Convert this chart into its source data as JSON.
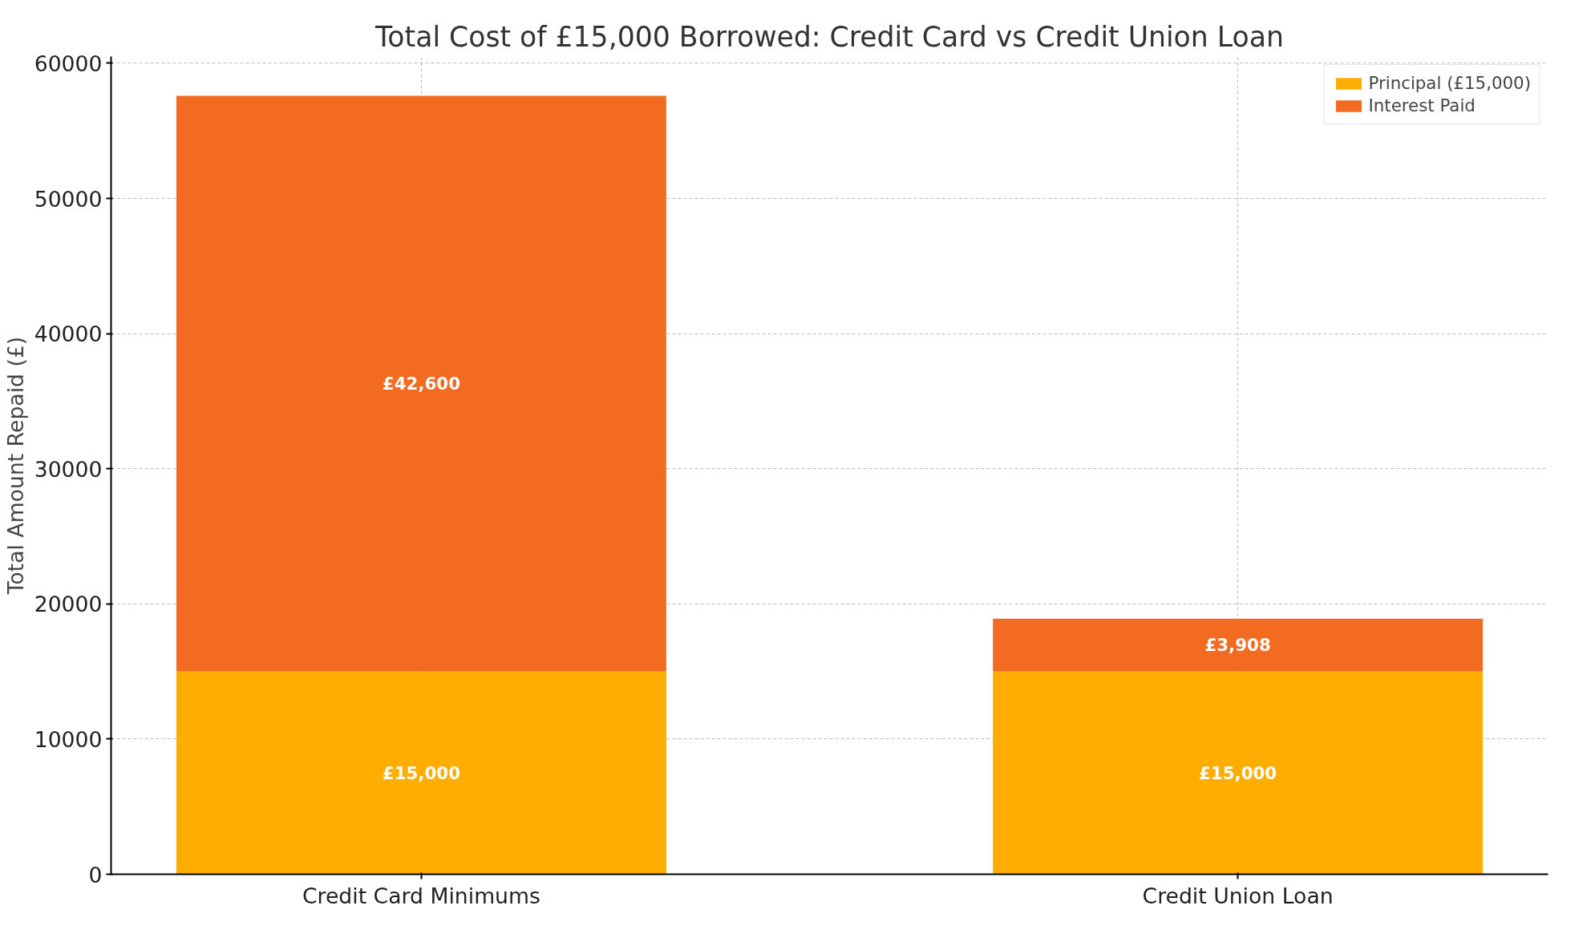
{
  "chart_data": {
    "type": "bar",
    "title": "Total Cost of £15,000 Borrowed: Credit Card vs Credit Union Loan",
    "ylabel": "Total Amount Repaid (£)",
    "categories": [
      "Credit Card Minimums",
      "Credit Union Loan"
    ],
    "stacked": true,
    "series": [
      {
        "name": "Principal (£15,000)",
        "color": "#ffad00",
        "values": [
          15000,
          15000
        ],
        "value_labels": [
          "£15,000",
          "£15,000"
        ]
      },
      {
        "name": "Interest Paid",
        "color": "#f26b21",
        "values": [
          42600,
          3908
        ],
        "value_labels": [
          "£42,600",
          "£3,908"
        ]
      }
    ],
    "ylim": [
      0,
      60500
    ],
    "yticks": [
      0,
      10000,
      20000,
      30000,
      40000,
      50000,
      60000
    ],
    "grid": true,
    "legend": "top right"
  }
}
